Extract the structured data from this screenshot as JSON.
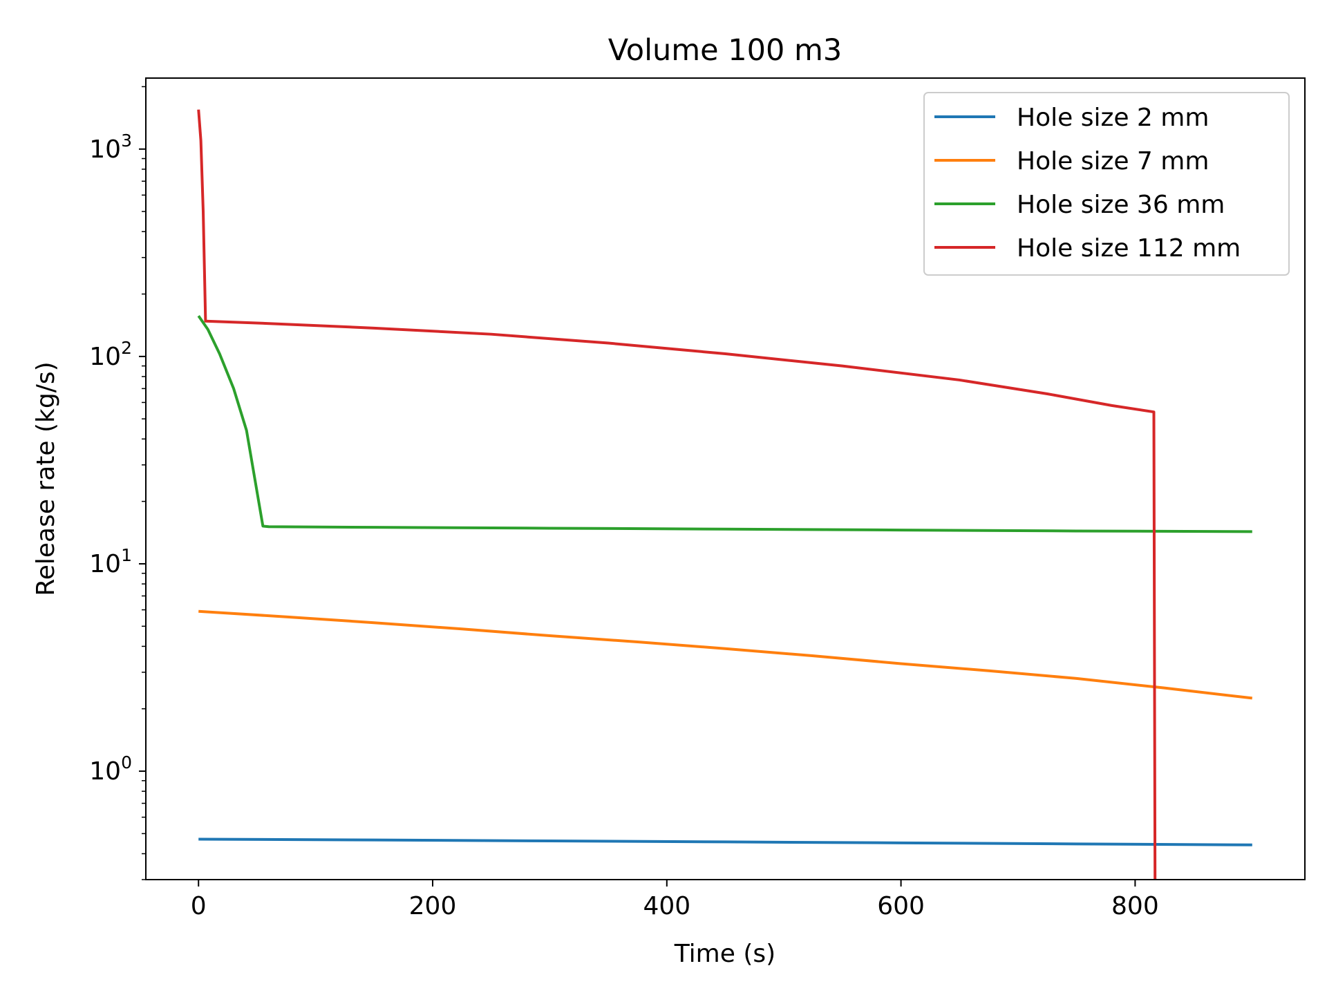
{
  "chart_data": {
    "type": "line",
    "title": "Volume 100 m3",
    "xlabel": "Time (s)",
    "ylabel": "Release rate (kg/s)",
    "yscale": "log",
    "xlim": [
      -45,
      945
    ],
    "ylim": [
      0.3,
      2200
    ],
    "grid": false,
    "legend_position": "top-right",
    "x_ticks": [
      0,
      200,
      400,
      600,
      800
    ],
    "x_tick_labels": [
      "0",
      "200",
      "400",
      "600",
      "800"
    ],
    "y_ticks": [
      1,
      10,
      100,
      1000
    ],
    "y_tick_labels": [
      {
        "base": "10",
        "exp": "0"
      },
      {
        "base": "10",
        "exp": "1"
      },
      {
        "base": "10",
        "exp": "2"
      },
      {
        "base": "10",
        "exp": "3"
      }
    ],
    "series": [
      {
        "name": "Hole size 2 mm",
        "color": "#1f77b4",
        "points": [
          [
            0,
            0.47
          ],
          [
            150,
            0.466
          ],
          [
            300,
            0.461
          ],
          [
            450,
            0.456
          ],
          [
            600,
            0.451
          ],
          [
            750,
            0.446
          ],
          [
            900,
            0.441
          ]
        ]
      },
      {
        "name": "Hole size 7 mm",
        "color": "#ff7f0e",
        "points": [
          [
            0,
            5.9
          ],
          [
            75,
            5.55
          ],
          [
            150,
            5.2
          ],
          [
            225,
            4.85
          ],
          [
            300,
            4.5
          ],
          [
            375,
            4.2
          ],
          [
            450,
            3.9
          ],
          [
            525,
            3.6
          ],
          [
            600,
            3.3
          ],
          [
            675,
            3.05
          ],
          [
            750,
            2.8
          ],
          [
            825,
            2.52
          ],
          [
            900,
            2.25
          ]
        ]
      },
      {
        "name": "Hole size 36 mm",
        "color": "#2ca02c",
        "points": [
          [
            0,
            157
          ],
          [
            8,
            135
          ],
          [
            18,
            103
          ],
          [
            30,
            70
          ],
          [
            41,
            44
          ],
          [
            55,
            15.2
          ],
          [
            60,
            15.1
          ],
          [
            150,
            15.0
          ],
          [
            300,
            14.85
          ],
          [
            450,
            14.7
          ],
          [
            600,
            14.55
          ],
          [
            750,
            14.4
          ],
          [
            900,
            14.3
          ]
        ]
      },
      {
        "name": "Hole size 112 mm",
        "color": "#d62728",
        "points": [
          [
            0,
            1550
          ],
          [
            2,
            1100
          ],
          [
            4,
            500
          ],
          [
            6,
            148
          ],
          [
            50,
            145
          ],
          [
            150,
            137
          ],
          [
            250,
            128
          ],
          [
            350,
            116
          ],
          [
            450,
            103
          ],
          [
            550,
            90
          ],
          [
            650,
            77
          ],
          [
            725,
            66
          ],
          [
            780,
            58
          ],
          [
            816,
            54
          ],
          [
            817,
            0.3
          ]
        ]
      }
    ]
  }
}
